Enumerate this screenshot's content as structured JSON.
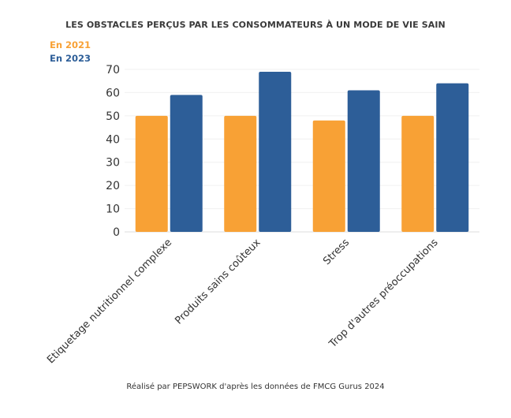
{
  "chart_data": {
    "type": "bar",
    "title": "LES OBSTACLES PERÇUS PAR LES CONSOMMATEURS À UN MODE DE VIE SAIN",
    "categories": [
      "Etiquetage nutritionnel complexe",
      "Produits sains coûteux",
      "Stress",
      "Trop d'autres préoccupations"
    ],
    "series": [
      {
        "name": "En 2021",
        "values": [
          50,
          50,
          48,
          50
        ],
        "color": "#F8A135"
      },
      {
        "name": "En 2023",
        "values": [
          59,
          69,
          61,
          64
        ],
        "color": "#2D5E98"
      }
    ],
    "ylim": [
      0,
      70
    ],
    "yticks": [
      0,
      10,
      20,
      30,
      40,
      50,
      60,
      70
    ],
    "legend_position": "top-left",
    "grid": false,
    "source": "Réalisé par PEPSWORK d'après les données de FMCG Gurus 2024"
  }
}
